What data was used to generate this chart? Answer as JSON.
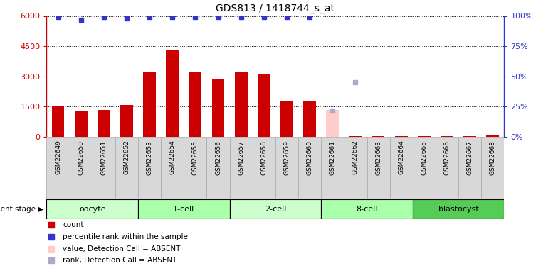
{
  "title": "GDS813 / 1418744_s_at",
  "samples": [
    "GSM22649",
    "GSM22650",
    "GSM22651",
    "GSM22652",
    "GSM22653",
    "GSM22654",
    "GSM22655",
    "GSM22656",
    "GSM22657",
    "GSM22658",
    "GSM22659",
    "GSM22660",
    "GSM22661",
    "GSM22662",
    "GSM22663",
    "GSM22664",
    "GSM22665",
    "GSM22666",
    "GSM22667",
    "GSM22668"
  ],
  "counts": [
    1550,
    1300,
    1350,
    1600,
    3200,
    4300,
    3250,
    2900,
    3200,
    3100,
    1750,
    1800,
    50,
    50,
    50,
    50,
    50,
    50,
    50,
    100
  ],
  "percentile_ranks": [
    99,
    97,
    99,
    98,
    99,
    99,
    99,
    99,
    99,
    99,
    99,
    99,
    null,
    null,
    null,
    null,
    null,
    null,
    null,
    null
  ],
  "absent_counts": [
    null,
    null,
    null,
    null,
    null,
    null,
    null,
    null,
    null,
    null,
    null,
    null,
    null,
    null,
    null,
    null,
    null,
    null,
    null,
    null
  ],
  "absent_ranks": [
    null,
    null,
    null,
    null,
    null,
    null,
    null,
    null,
    null,
    null,
    null,
    null,
    22,
    45,
    null,
    null,
    null,
    null,
    null,
    null
  ],
  "absent_count_vals": [
    null,
    null,
    null,
    null,
    null,
    null,
    null,
    null,
    null,
    null,
    null,
    null,
    1350,
    null,
    null,
    null,
    null,
    null,
    null,
    null
  ],
  "absent_rank_vals": [
    null,
    null,
    null,
    null,
    null,
    null,
    null,
    null,
    null,
    null,
    null,
    null,
    null,
    null,
    null,
    null,
    null,
    null,
    null,
    null
  ],
  "stages": [
    {
      "label": "oocyte",
      "start": 0,
      "end": 4
    },
    {
      "label": "1-cell",
      "start": 4,
      "end": 8
    },
    {
      "label": "2-cell",
      "start": 8,
      "end": 12
    },
    {
      "label": "8-cell",
      "start": 12,
      "end": 16
    },
    {
      "label": "blastocyst",
      "start": 16,
      "end": 20
    }
  ],
  "stage_colors": [
    "#ccffcc",
    "#aaffaa",
    "#ccffcc",
    "#aaffaa",
    "#55cc55"
  ],
  "bar_color": "#cc0000",
  "rank_color": "#3333cc",
  "absent_bar_color": "#ffcccc",
  "absent_rank_color": "#aaaacc",
  "left_ylim": [
    0,
    6000
  ],
  "right_ylim": [
    0,
    100
  ],
  "left_yticks": [
    0,
    1500,
    3000,
    4500,
    6000
  ],
  "right_yticks": [
    0,
    25,
    50,
    75,
    100
  ],
  "legend_items": [
    {
      "label": "count",
      "color": "#cc0000"
    },
    {
      "label": "percentile rank within the sample",
      "color": "#3333cc"
    },
    {
      "label": "value, Detection Call = ABSENT",
      "color": "#ffcccc"
    },
    {
      "label": "rank, Detection Call = ABSENT",
      "color": "#aaaacc"
    }
  ]
}
